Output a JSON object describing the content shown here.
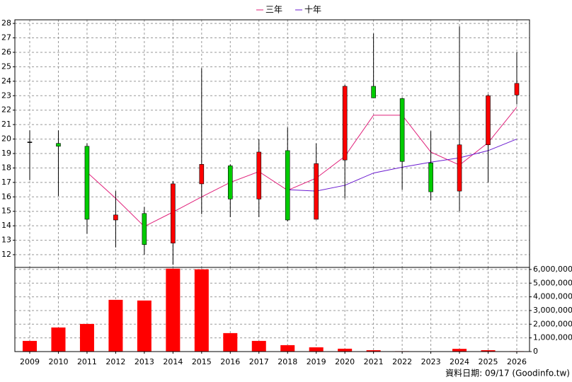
{
  "chart_data": [
    {
      "type": "candlestick",
      "open": [
        19.8,
        19.7,
        19.5,
        14.4,
        14.85,
        12.8,
        16.9,
        18.15,
        15.85,
        19.2,
        14.45,
        18.55,
        23.65,
        22.8,
        18.35,
        16.4,
        19.6,
        23.05
      ],
      "high": [
        20.6,
        20.6,
        19.7,
        16.4,
        15.3,
        17.1,
        24.9,
        18.25,
        20.0,
        20.8,
        19.7,
        23.75,
        27.3,
        22.85,
        20.55,
        27.8,
        23.1,
        26.0
      ],
      "low": [
        17.15,
        16.05,
        13.45,
        12.5,
        12.0,
        11.3,
        14.8,
        14.6,
        14.6,
        14.3,
        14.45,
        15.9,
        23.0,
        16.5,
        15.75,
        15.0,
        17.0,
        22.4
      ],
      "close": [
        19.8,
        19.5,
        14.45,
        14.75,
        12.7,
        16.9,
        18.25,
        15.85,
        19.1,
        14.4,
        18.3,
        23.65,
        22.85,
        18.45,
        16.35,
        19.6,
        23.0,
        23.85
      ],
      "up_color": "#ff0000",
      "down_color": "#00cc00",
      "flat_color": "#000000",
      "series": [
        {
          "name": "三年",
          "color": "#e0207a",
          "values": [
            null,
            null,
            17.7,
            15.9,
            13.95,
            14.95,
            16.0,
            17.0,
            17.75,
            16.45,
            17.3,
            18.8,
            21.65,
            21.65,
            19.1,
            18.2,
            19.75,
            22.2
          ]
        },
        {
          "name": "十年",
          "color": "#6a1ad0",
          "values": [
            null,
            null,
            null,
            null,
            null,
            null,
            null,
            null,
            null,
            16.5,
            16.4,
            16.8,
            17.65,
            18.05,
            18.4,
            18.7,
            19.2,
            20.0
          ]
        }
      ],
      "ylim": [
        11.12,
        28.25
      ],
      "yticks": [
        12,
        13,
        14,
        15,
        16,
        17,
        18,
        19,
        20,
        21,
        22,
        23,
        24,
        25,
        26,
        27,
        28
      ],
      "grid": true,
      "legend": "top"
    },
    {
      "type": "bar",
      "categories": [
        "2009",
        "2010",
        "2011",
        "2012",
        "2013",
        "2014",
        "2015",
        "2016",
        "2017",
        "2018",
        "2019",
        "2020",
        "2021",
        "2022",
        "2023",
        "2024",
        "2025",
        "2026"
      ],
      "values": [
        780000,
        1760000,
        2020000,
        3780000,
        3730000,
        6060000,
        6010000,
        1350000,
        780000,
        470000,
        310000,
        210000,
        100000,
        30000,
        20000,
        200000,
        100000,
        30000
      ],
      "color": "#ff0000",
      "ylim": [
        0,
        6150000
      ],
      "yticks": [
        {
          "value": 0,
          "label": "0"
        },
        {
          "value": 1000000,
          "label": "1,000,000"
        },
        {
          "value": 2000000,
          "label": "2,000,000"
        },
        {
          "value": 3000000,
          "label": "3,000,000"
        },
        {
          "value": 4000000,
          "label": "4,000,000"
        },
        {
          "value": 5000000,
          "label": "5,000,000"
        },
        {
          "value": 6000000,
          "label": "6,000,000"
        }
      ],
      "grid": true,
      "source": "資料日期: 09/17  (Goodinfo.tw)"
    }
  ]
}
